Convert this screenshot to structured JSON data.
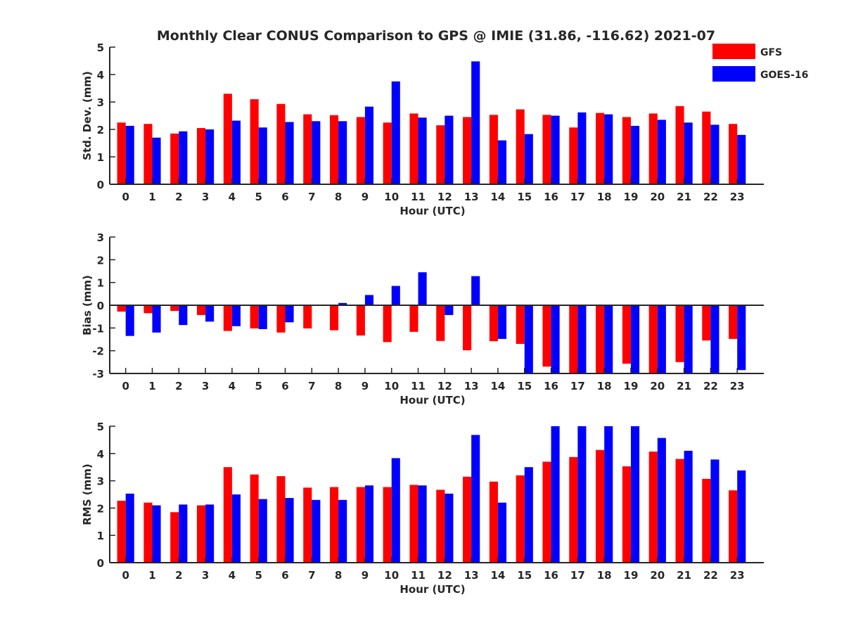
{
  "title": "Monthly Clear CONUS Comparison to GPS @ IMIE (31.86, -116.62) 2021-07",
  "legend": {
    "position": "top-right",
    "entries": [
      {
        "label": "GFS",
        "color": "#ff0000"
      },
      {
        "label": "GOES-16",
        "color": "#0000ff"
      }
    ]
  },
  "chart_data": [
    {
      "type": "bar",
      "xlabel": "Hour (UTC)",
      "ylabel": "Std. Dev. (mm)",
      "ylim": [
        0,
        5
      ],
      "yticks": [
        0,
        1,
        2,
        3,
        4,
        5
      ],
      "categories": [
        0,
        1,
        2,
        3,
        4,
        5,
        6,
        7,
        8,
        9,
        10,
        11,
        12,
        13,
        14,
        15,
        16,
        17,
        18,
        19,
        20,
        21,
        22,
        23
      ],
      "series": [
        {
          "name": "GFS",
          "color": "#ff0000",
          "values": [
            2.25,
            2.2,
            1.85,
            2.05,
            3.3,
            3.1,
            2.93,
            2.55,
            2.52,
            2.45,
            2.25,
            2.58,
            2.15,
            2.45,
            2.53,
            2.73,
            2.53,
            2.07,
            2.6,
            2.45,
            2.58,
            2.85,
            2.65,
            2.2
          ]
        },
        {
          "name": "GOES-16",
          "color": "#0000ff",
          "values": [
            2.13,
            1.7,
            1.93,
            2.0,
            2.32,
            2.07,
            2.27,
            2.3,
            2.3,
            2.83,
            3.75,
            2.43,
            2.5,
            4.48,
            1.6,
            1.83,
            2.5,
            2.62,
            2.55,
            2.13,
            2.35,
            2.25,
            2.17,
            1.8
          ]
        }
      ]
    },
    {
      "type": "bar",
      "xlabel": "Hour (UTC)",
      "ylabel": "Bias (mm)",
      "ylim": [
        -3,
        3
      ],
      "yticks": [
        -3,
        -2,
        -1,
        0,
        1,
        2,
        3
      ],
      "categories": [
        0,
        1,
        2,
        3,
        4,
        5,
        6,
        7,
        8,
        9,
        10,
        11,
        12,
        13,
        14,
        15,
        16,
        17,
        18,
        19,
        20,
        21,
        22,
        23
      ],
      "series": [
        {
          "name": "GFS",
          "color": "#ff0000",
          "values": [
            -0.28,
            -0.35,
            -0.25,
            -0.43,
            -1.13,
            -1.02,
            -1.2,
            -1.02,
            -1.1,
            -1.33,
            -1.62,
            -1.17,
            -1.57,
            -1.98,
            -1.58,
            -1.7,
            -2.7,
            -3.0,
            -3.0,
            -2.57,
            -3.0,
            -2.5,
            -1.55,
            -1.48
          ]
        },
        {
          "name": "GOES-16",
          "color": "#0000ff",
          "values": [
            -1.35,
            -1.2,
            -0.87,
            -0.72,
            -0.92,
            -1.05,
            -0.75,
            0.0,
            0.1,
            0.45,
            0.85,
            1.45,
            -0.43,
            1.28,
            -1.48,
            -3.0,
            -3.0,
            -3.0,
            -3.0,
            -3.0,
            -3.0,
            -3.0,
            -3.0,
            -2.85
          ]
        }
      ]
    },
    {
      "type": "bar",
      "xlabel": "Hour (UTC)",
      "ylabel": "RMS (mm)",
      "ylim": [
        0,
        5
      ],
      "yticks": [
        0,
        1,
        2,
        3,
        4,
        5
      ],
      "categories": [
        0,
        1,
        2,
        3,
        4,
        5,
        6,
        7,
        8,
        9,
        10,
        11,
        12,
        13,
        14,
        15,
        16,
        17,
        18,
        19,
        20,
        21,
        22,
        23
      ],
      "series": [
        {
          "name": "GFS",
          "color": "#ff0000",
          "values": [
            2.27,
            2.2,
            1.85,
            2.1,
            3.5,
            3.23,
            3.17,
            2.75,
            2.77,
            2.77,
            2.77,
            2.85,
            2.67,
            3.15,
            2.97,
            3.2,
            3.7,
            3.87,
            4.13,
            3.53,
            4.07,
            3.8,
            3.07,
            2.65
          ]
        },
        {
          "name": "GOES-16",
          "color": "#0000ff",
          "values": [
            2.53,
            2.1,
            2.13,
            2.13,
            2.5,
            2.33,
            2.37,
            2.3,
            2.3,
            2.83,
            3.83,
            2.83,
            2.53,
            4.68,
            2.2,
            3.5,
            5.0,
            5.0,
            5.0,
            5.0,
            4.57,
            4.1,
            3.78,
            3.38
          ]
        }
      ]
    }
  ]
}
